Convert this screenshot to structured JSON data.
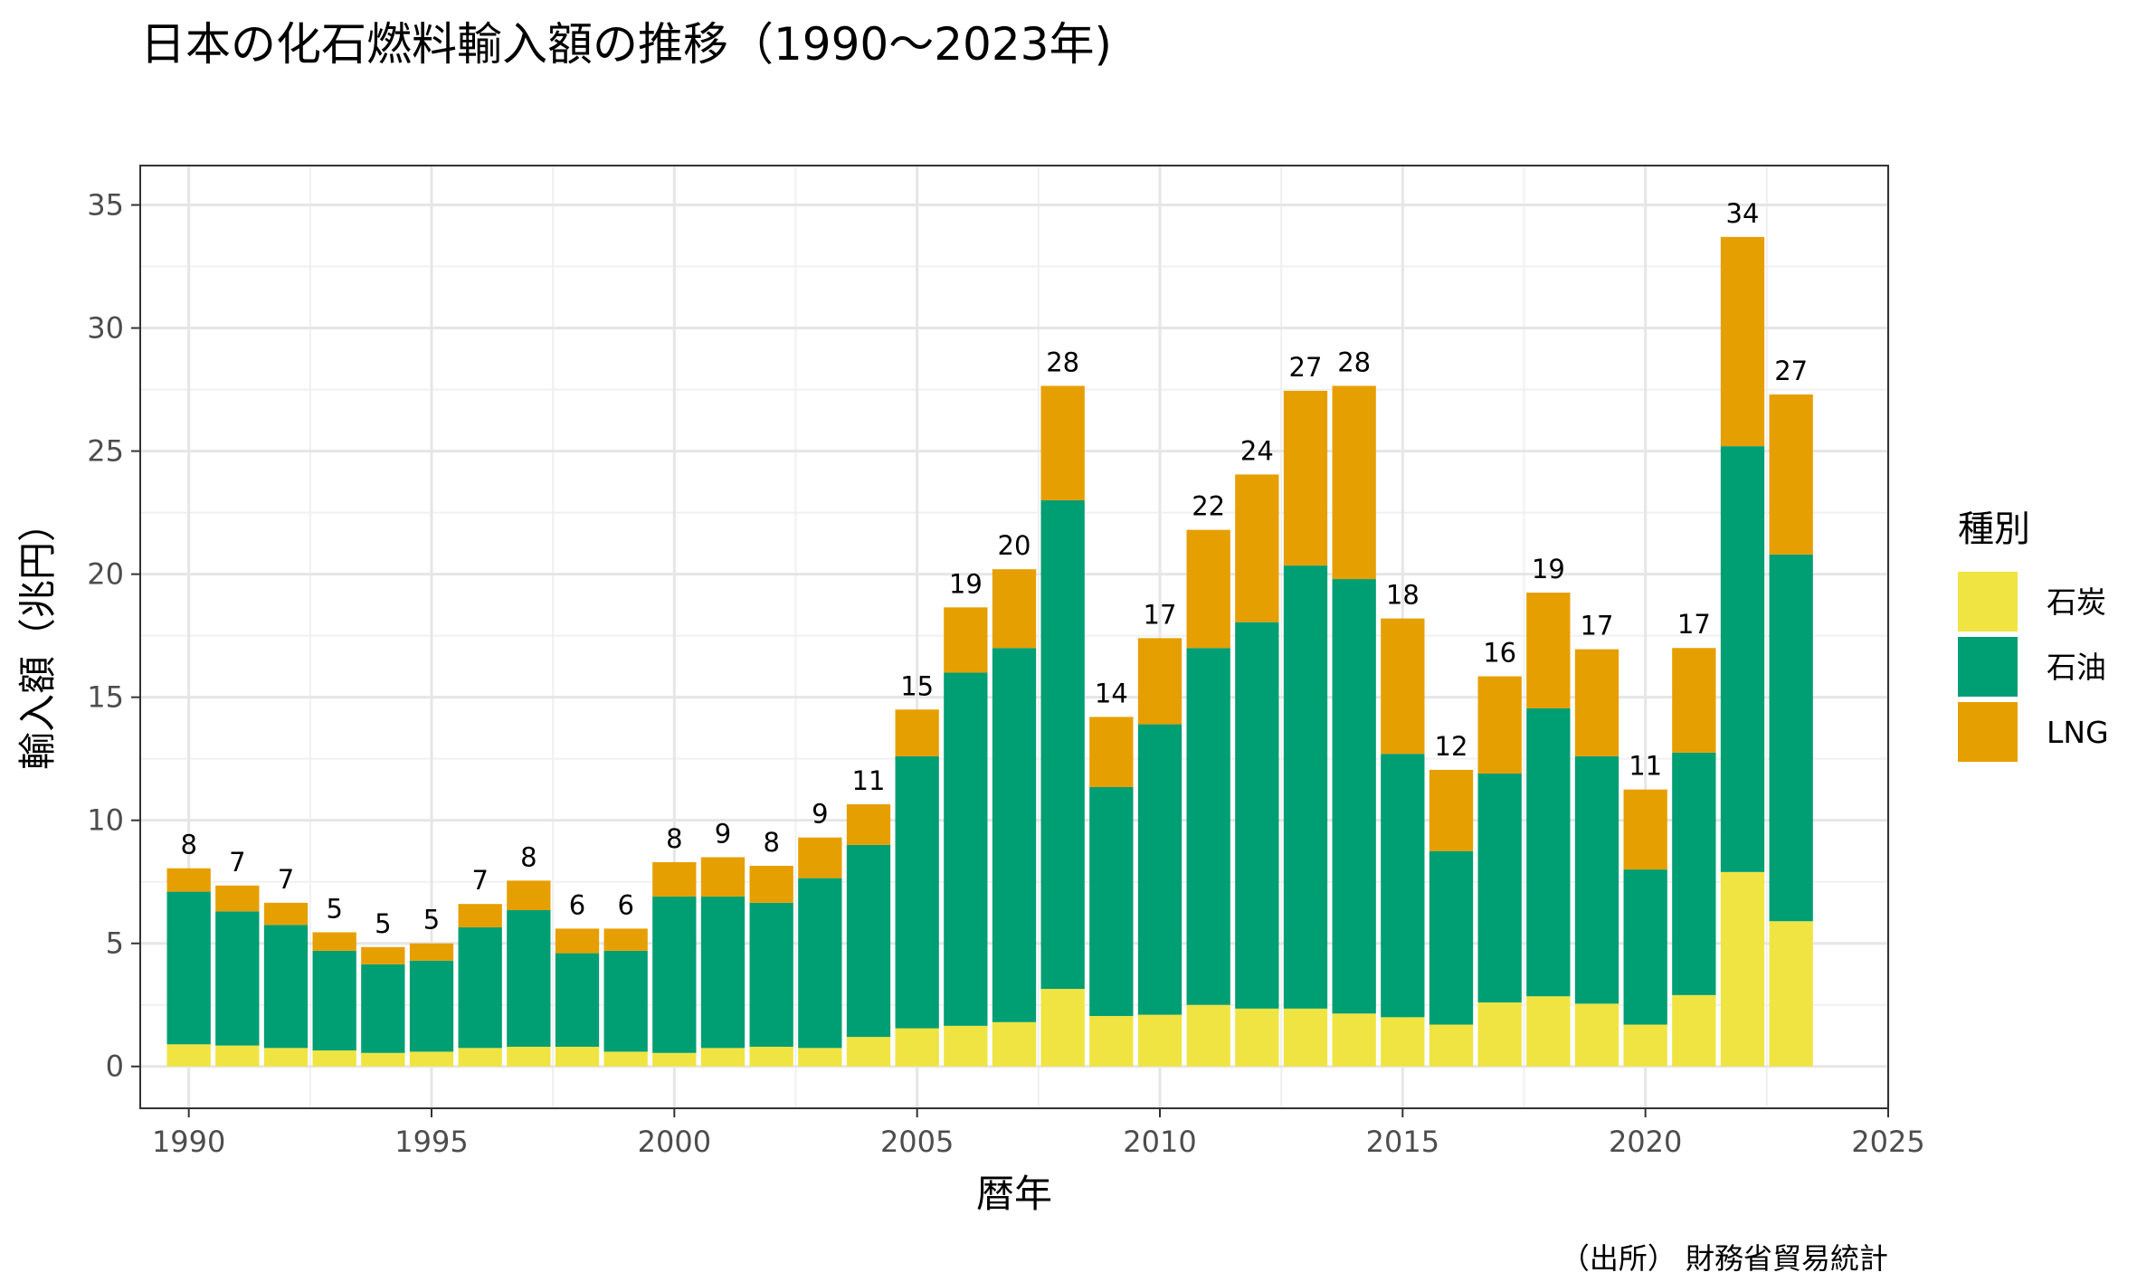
{
  "chart_data": {
    "type": "bar",
    "stacked": true,
    "title": "日本の化石燃料輸入額の推移（1990～2023年)",
    "xlabel": "暦年",
    "ylabel": "輸入額（兆円）",
    "caption": "（出所） 財務省貿易統計",
    "xlim": [
      1989,
      2025
    ],
    "ylim": [
      -1.7,
      36.6
    ],
    "x_ticks": [
      1990,
      1995,
      2000,
      2005,
      2010,
      2015,
      2020,
      2025
    ],
    "y_ticks": [
      0,
      5,
      10,
      15,
      20,
      25,
      30,
      35
    ],
    "grid": true,
    "legend": {
      "title": "種別",
      "position": "right"
    },
    "x": [
      1990,
      1991,
      1992,
      1993,
      1994,
      1995,
      1996,
      1997,
      1998,
      1999,
      2000,
      2001,
      2002,
      2003,
      2004,
      2005,
      2006,
      2007,
      2008,
      2009,
      2010,
      2011,
      2012,
      2013,
      2014,
      2015,
      2016,
      2017,
      2018,
      2019,
      2020,
      2021,
      2022,
      2023
    ],
    "series": [
      {
        "name": "石炭",
        "color": "#F0E442",
        "values": [
          0.9,
          0.85,
          0.75,
          0.65,
          0.55,
          0.6,
          0.75,
          0.8,
          0.8,
          0.6,
          0.55,
          0.75,
          0.8,
          0.75,
          1.2,
          1.55,
          1.65,
          1.8,
          3.15,
          2.05,
          2.1,
          2.5,
          2.35,
          2.35,
          2.15,
          2.0,
          1.7,
          2.6,
          2.85,
          2.55,
          1.7,
          2.9,
          7.9,
          5.9
        ]
      },
      {
        "name": "石油",
        "color": "#009E73",
        "values": [
          6.2,
          5.45,
          5.0,
          4.05,
          3.6,
          3.7,
          4.9,
          5.55,
          3.8,
          4.1,
          6.35,
          6.15,
          5.85,
          6.9,
          7.8,
          11.05,
          14.35,
          15.2,
          19.85,
          9.3,
          11.8,
          14.5,
          15.7,
          18.0,
          17.65,
          10.7,
          7.05,
          9.3,
          11.7,
          10.05,
          6.3,
          9.85,
          17.3,
          14.9
        ]
      },
      {
        "name": "LNG",
        "color": "#E69F00",
        "values": [
          0.95,
          1.05,
          0.9,
          0.75,
          0.7,
          0.7,
          0.95,
          1.2,
          1.0,
          0.9,
          1.4,
          1.6,
          1.5,
          1.65,
          1.65,
          1.9,
          2.65,
          3.2,
          4.65,
          2.85,
          3.5,
          4.8,
          6.0,
          7.1,
          7.85,
          5.5,
          3.3,
          3.95,
          4.7,
          4.35,
          3.25,
          4.25,
          8.5,
          6.5
        ]
      }
    ],
    "data_labels": [
      "8",
      "7",
      "7",
      "5",
      "5",
      "5",
      "7",
      "8",
      "6",
      "6",
      "8",
      "9",
      "8",
      "9",
      "11",
      "15",
      "19",
      "20",
      "28",
      "14",
      "17",
      "22",
      "24",
      "27",
      "28",
      "18",
      "12",
      "16",
      "19",
      "17",
      "11",
      "17",
      "34",
      "27"
    ]
  }
}
